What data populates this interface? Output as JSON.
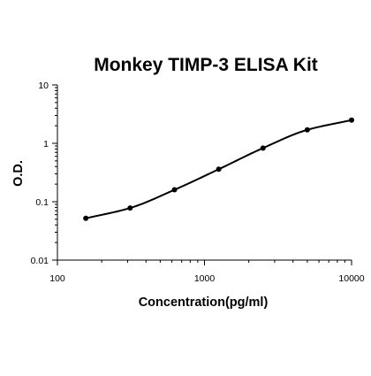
{
  "chart_data": {
    "type": "line",
    "title": "Monkey TIMP-3 ELISA Kit",
    "xlabel": "Concentration(pg/ml)",
    "ylabel": "O.D.",
    "x_scale": "log",
    "y_scale": "log",
    "xlim": [
      100,
      10000
    ],
    "ylim": [
      0.01,
      10
    ],
    "x_ticks": [
      100,
      1000,
      10000
    ],
    "x_tick_labels": [
      "100",
      "1000",
      "10000"
    ],
    "y_ticks": [
      0.01,
      0.1,
      1,
      10
    ],
    "y_tick_labels": [
      "0.01",
      "0.1",
      "1",
      "10"
    ],
    "grid": false,
    "series": [
      {
        "x": [
          156,
          312,
          625,
          1250,
          2500,
          5000,
          10000
        ],
        "y": [
          0.052,
          0.078,
          0.16,
          0.36,
          0.83,
          1.7,
          2.5
        ]
      }
    ],
    "colors": {
      "line": "#000000",
      "axis": "#000000",
      "background": "#ffffff"
    }
  }
}
